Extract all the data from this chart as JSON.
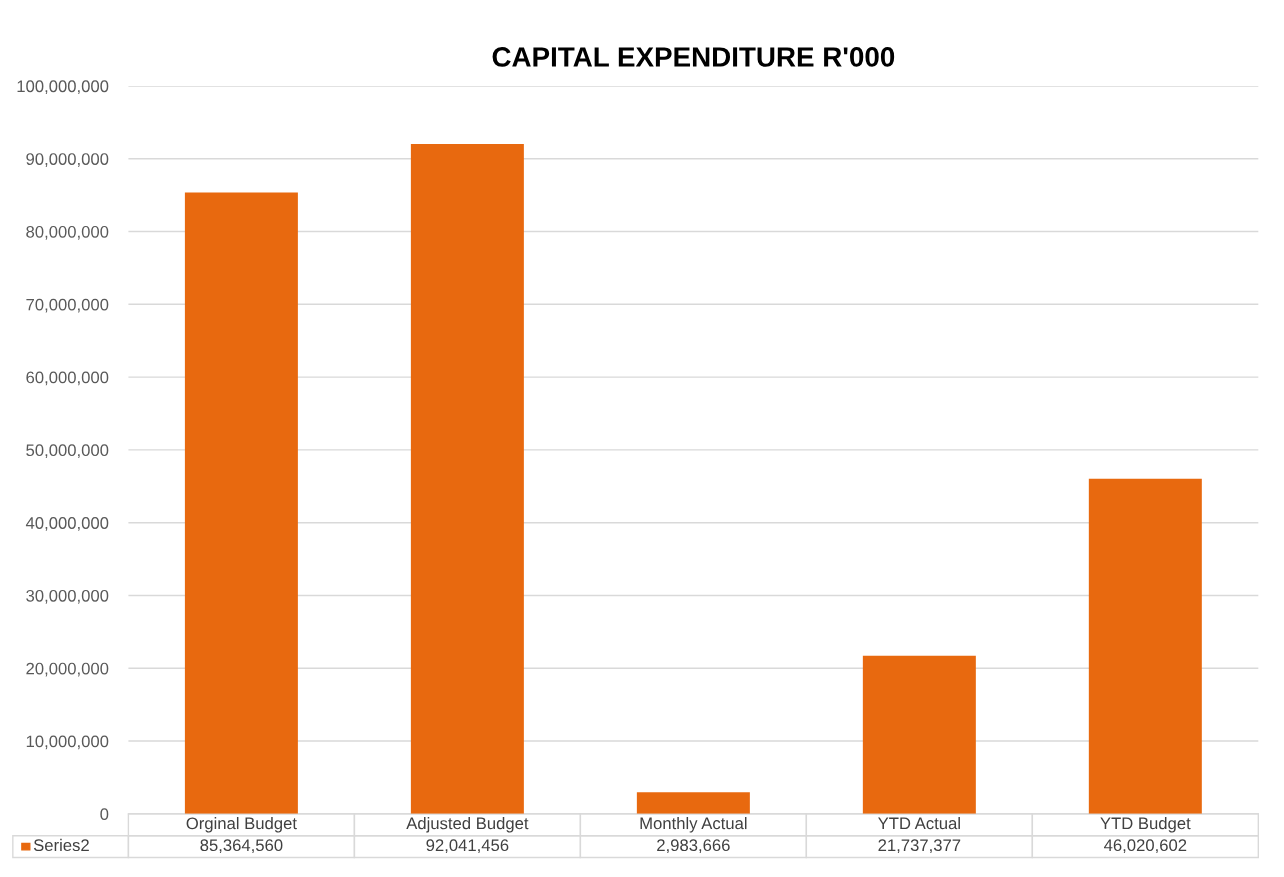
{
  "chart_data": {
    "type": "bar",
    "title": "CAPITAL EXPENDITURE R'000",
    "categories": [
      "Orginal Budget",
      "Adjusted Budget",
      "Monthly Actual",
      "YTD Actual",
      "YTD Budget"
    ],
    "series": [
      {
        "name": "Series2",
        "color": "#e8690f",
        "values": [
          85364560,
          92041456,
          2983666,
          21737377,
          46020602
        ],
        "value_labels": [
          "85,364,560",
          "92,041,456",
          "2,983,666",
          "21,737,377",
          "46,020,602"
        ]
      }
    ],
    "ylim": [
      0,
      100000000
    ],
    "yticks": [
      {
        "value": 0,
        "label": "0"
      },
      {
        "value": 10000000,
        "label": "10,000,000"
      },
      {
        "value": 20000000,
        "label": "20,000,000"
      },
      {
        "value": 30000000,
        "label": "30,000,000"
      },
      {
        "value": 40000000,
        "label": "40,000,000"
      },
      {
        "value": 50000000,
        "label": "50,000,000"
      },
      {
        "value": 60000000,
        "label": "60,000,000"
      },
      {
        "value": 70000000,
        "label": "70,000,000"
      },
      {
        "value": 80000000,
        "label": "80,000,000"
      },
      {
        "value": 90000000,
        "label": "90,000,000"
      },
      {
        "value": 100000000,
        "label": "100,000,000"
      }
    ],
    "grid": "y"
  }
}
